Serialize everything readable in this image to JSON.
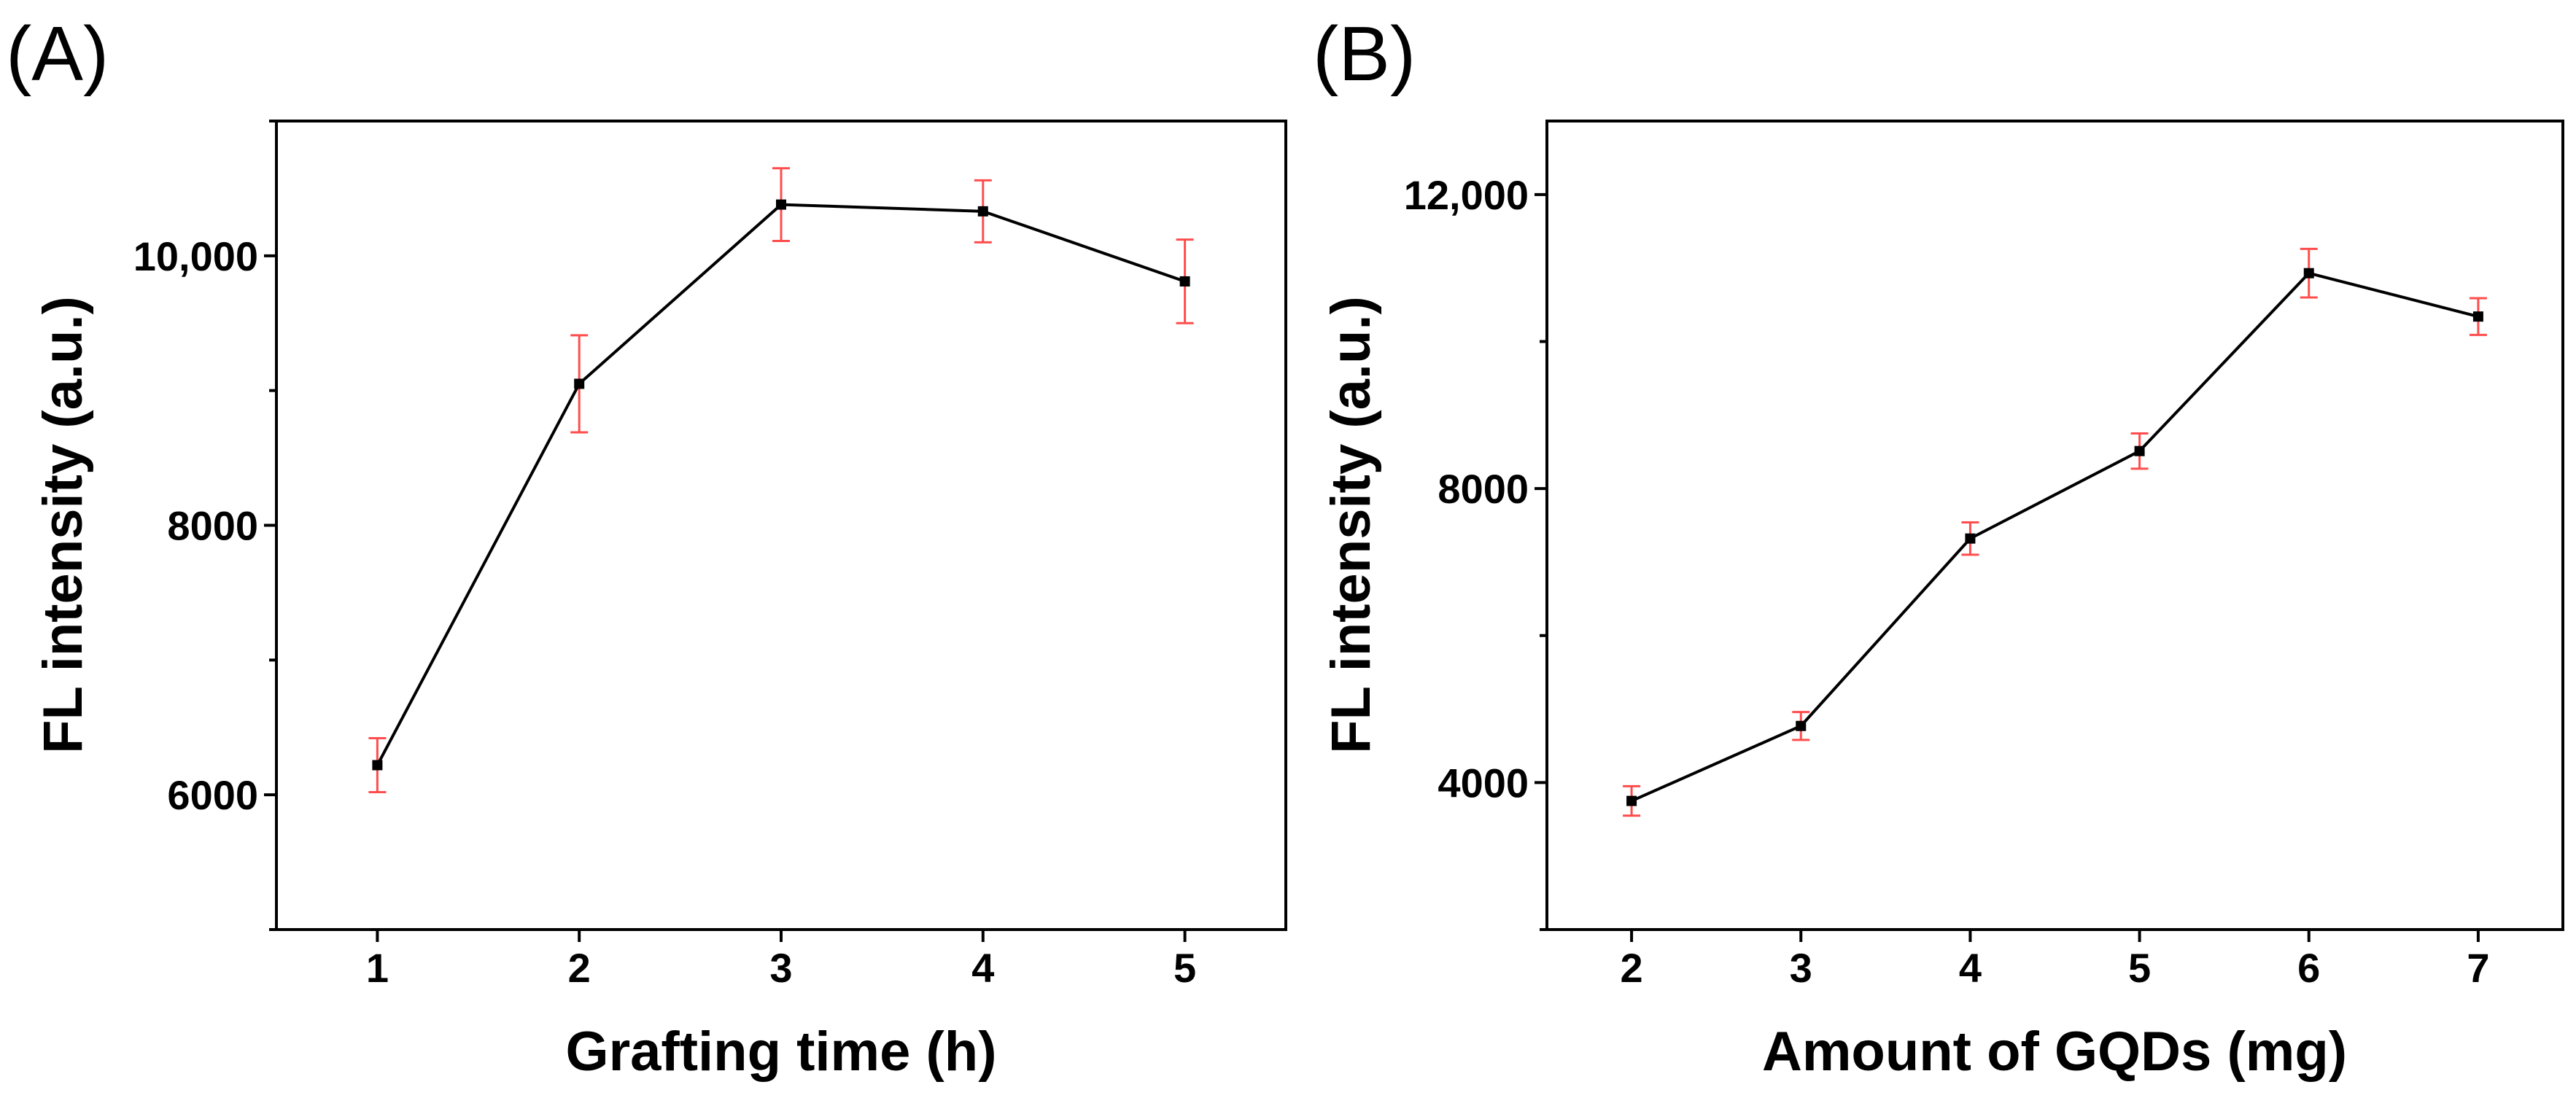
{
  "chart_data": [
    {
      "type": "line",
      "panel_label": "(A)",
      "title": "",
      "xlabel": "Grafting time (h)",
      "ylabel": "FL intensity (a.u.)",
      "x": [
        1,
        2,
        3,
        4,
        5
      ],
      "x_tick_labels": [
        "1",
        "2",
        "3",
        "4",
        "5"
      ],
      "xlim": [
        0.5,
        5.5
      ],
      "y_ticks": [
        6000,
        8000,
        10000
      ],
      "y_tick_labels": [
        "6000",
        "8000",
        "10,000"
      ],
      "y_minor_ticks": [
        5000,
        7000,
        9000,
        11000
      ],
      "ylim": [
        5000,
        11000
      ],
      "grid": false,
      "legend": "none",
      "series": [
        {
          "name": "FL intensity",
          "values": [
            6220,
            9050,
            10380,
            10330,
            9810
          ],
          "errors": [
            200,
            360,
            270,
            230,
            310
          ],
          "line_color": "#000000",
          "error_bar_color": "#ff4d4d"
        }
      ]
    },
    {
      "type": "line",
      "panel_label": "(B)",
      "title": "",
      "xlabel": "Amount of GQDs (mg)",
      "ylabel": "FL intensity (a.u.)",
      "x": [
        2,
        3,
        4,
        5,
        6,
        7
      ],
      "x_tick_labels": [
        "2",
        "3",
        "4",
        "5",
        "6",
        "7"
      ],
      "xlim": [
        1.5,
        7.5
      ],
      "y_ticks": [
        4000,
        8000,
        12000
      ],
      "y_tick_labels": [
        "4000",
        "8000",
        "12,000"
      ],
      "y_minor_ticks": [
        2000,
        6000,
        10000,
        14000
      ],
      "ylim": [
        2000,
        13000
      ],
      "grid": false,
      "legend": "none",
      "series": [
        {
          "name": "FL intensity",
          "values": [
            3750,
            4770,
            7320,
            8510,
            10930,
            10340
          ],
          "errors": [
            200,
            190,
            220,
            240,
            330,
            250
          ],
          "line_color": "#000000",
          "error_bar_color": "#ff4d4d"
        }
      ]
    }
  ]
}
